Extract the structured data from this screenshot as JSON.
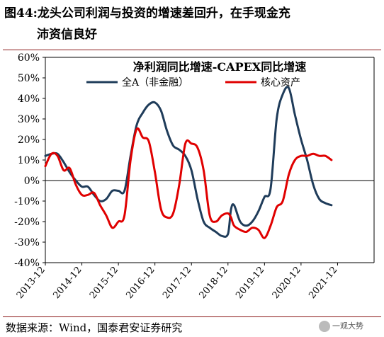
{
  "header": {
    "title_line1": "图44:龙头公司利润与投资的增速差回升，在手现金充",
    "title_line2": "沛资信良好"
  },
  "footer": {
    "source": "数据来源：Wind，国泰君安证券研究",
    "watermark": "一观大势"
  },
  "colors": {
    "series_a": "#1f3c5a",
    "series_b": "#e00000",
    "rule": "#8c1a1a"
  },
  "chart_data": {
    "type": "line",
    "title": "净利润同比增速-CAPEX同比增速",
    "ylim": [
      -0.4,
      0.6
    ],
    "yticks": [
      -0.4,
      -0.3,
      -0.2,
      -0.1,
      0,
      0.1,
      0.2,
      0.3,
      0.4,
      0.5,
      0.6
    ],
    "ytick_labels": [
      "-40%",
      "-30%",
      "-20%",
      "-10%",
      "0%",
      "10%",
      "20%",
      "30%",
      "40%",
      "50%",
      "60%"
    ],
    "xlim": [
      "2013-12",
      "2022-12"
    ],
    "xtick_labels": [
      "2013-12",
      "2014-12",
      "2015-12",
      "2016-12",
      "2017-12",
      "2018-12",
      "2019-12",
      "2020-12",
      "2021-12"
    ],
    "legend_position": "top",
    "series": [
      {
        "name": "全A（非金融）",
        "color": "#1f3c5a",
        "points": [
          [
            "2013-12",
            0.12
          ],
          [
            "2014-02",
            0.13
          ],
          [
            "2014-04",
            0.13
          ],
          [
            "2014-06",
            0.09
          ],
          [
            "2014-08",
            0.04
          ],
          [
            "2014-10",
            0.0
          ],
          [
            "2014-12",
            -0.03
          ],
          [
            "2015-02",
            -0.03
          ],
          [
            "2015-04",
            -0.07
          ],
          [
            "2015-06",
            -0.1
          ],
          [
            "2015-08",
            -0.09
          ],
          [
            "2015-10",
            -0.05
          ],
          [
            "2015-12",
            -0.05
          ],
          [
            "2016-02",
            -0.05
          ],
          [
            "2016-04",
            0.12
          ],
          [
            "2016-06",
            0.27
          ],
          [
            "2016-08",
            0.33
          ],
          [
            "2016-10",
            0.37
          ],
          [
            "2016-12",
            0.38
          ],
          [
            "2017-02",
            0.34
          ],
          [
            "2017-04",
            0.24
          ],
          [
            "2017-06",
            0.17
          ],
          [
            "2017-08",
            0.15
          ],
          [
            "2017-10",
            0.12
          ],
          [
            "2017-12",
            0.05
          ],
          [
            "2018-02",
            -0.09
          ],
          [
            "2018-04",
            -0.2
          ],
          [
            "2018-06",
            -0.23
          ],
          [
            "2018-08",
            -0.25
          ],
          [
            "2018-10",
            -0.27
          ],
          [
            "2018-12",
            -0.26
          ],
          [
            "2019-01",
            -0.14
          ],
          [
            "2019-02",
            -0.12
          ],
          [
            "2019-04",
            -0.2
          ],
          [
            "2019-06",
            -0.22
          ],
          [
            "2019-08",
            -0.2
          ],
          [
            "2019-10",
            -0.15
          ],
          [
            "2019-12",
            -0.08
          ],
          [
            "2020-02",
            -0.04
          ],
          [
            "2020-04",
            0.3
          ],
          [
            "2020-06",
            0.42
          ],
          [
            "2020-08",
            0.45
          ],
          [
            "2020-10",
            0.32
          ],
          [
            "2020-12",
            0.2
          ],
          [
            "2021-02",
            0.1
          ],
          [
            "2021-04",
            -0.02
          ],
          [
            "2021-06",
            -0.09
          ],
          [
            "2021-08",
            -0.11
          ],
          [
            "2021-10",
            -0.12
          ]
        ]
      },
      {
        "name": "核心资产",
        "color": "#e00000",
        "points": [
          [
            "2013-12",
            0.07
          ],
          [
            "2014-02",
            0.13
          ],
          [
            "2014-04",
            0.12
          ],
          [
            "2014-06",
            0.05
          ],
          [
            "2014-08",
            0.06
          ],
          [
            "2014-10",
            -0.02
          ],
          [
            "2014-12",
            -0.07
          ],
          [
            "2015-02",
            -0.07
          ],
          [
            "2015-04",
            -0.06
          ],
          [
            "2015-06",
            -0.12
          ],
          [
            "2015-08",
            -0.17
          ],
          [
            "2015-10",
            -0.23
          ],
          [
            "2015-12",
            -0.2
          ],
          [
            "2016-02",
            -0.17
          ],
          [
            "2016-04",
            0.1
          ],
          [
            "2016-06",
            0.25
          ],
          [
            "2016-08",
            0.21
          ],
          [
            "2016-10",
            0.19
          ],
          [
            "2016-12",
            0.04
          ],
          [
            "2017-02",
            -0.14
          ],
          [
            "2017-04",
            -0.18
          ],
          [
            "2017-06",
            -0.16
          ],
          [
            "2017-08",
            -0.02
          ],
          [
            "2017-10",
            0.18
          ],
          [
            "2017-12",
            0.18
          ],
          [
            "2018-02",
            0.16
          ],
          [
            "2018-04",
            0.05
          ],
          [
            "2018-06",
            -0.17
          ],
          [
            "2018-08",
            -0.2
          ],
          [
            "2018-10",
            -0.17
          ],
          [
            "2018-12",
            -0.16
          ],
          [
            "2019-01",
            -0.18
          ],
          [
            "2019-02",
            -0.22
          ],
          [
            "2019-04",
            -0.24
          ],
          [
            "2019-06",
            -0.25
          ],
          [
            "2019-08",
            -0.23
          ],
          [
            "2019-10",
            -0.24
          ],
          [
            "2019-12",
            -0.28
          ],
          [
            "2020-02",
            -0.22
          ],
          [
            "2020-04",
            -0.13
          ],
          [
            "2020-06",
            -0.1
          ],
          [
            "2020-08",
            0.03
          ],
          [
            "2020-10",
            0.1
          ],
          [
            "2020-12",
            0.12
          ],
          [
            "2021-02",
            0.12
          ],
          [
            "2021-04",
            0.13
          ],
          [
            "2021-06",
            0.12
          ],
          [
            "2021-08",
            0.12
          ],
          [
            "2021-10",
            0.1
          ]
        ]
      }
    ]
  }
}
